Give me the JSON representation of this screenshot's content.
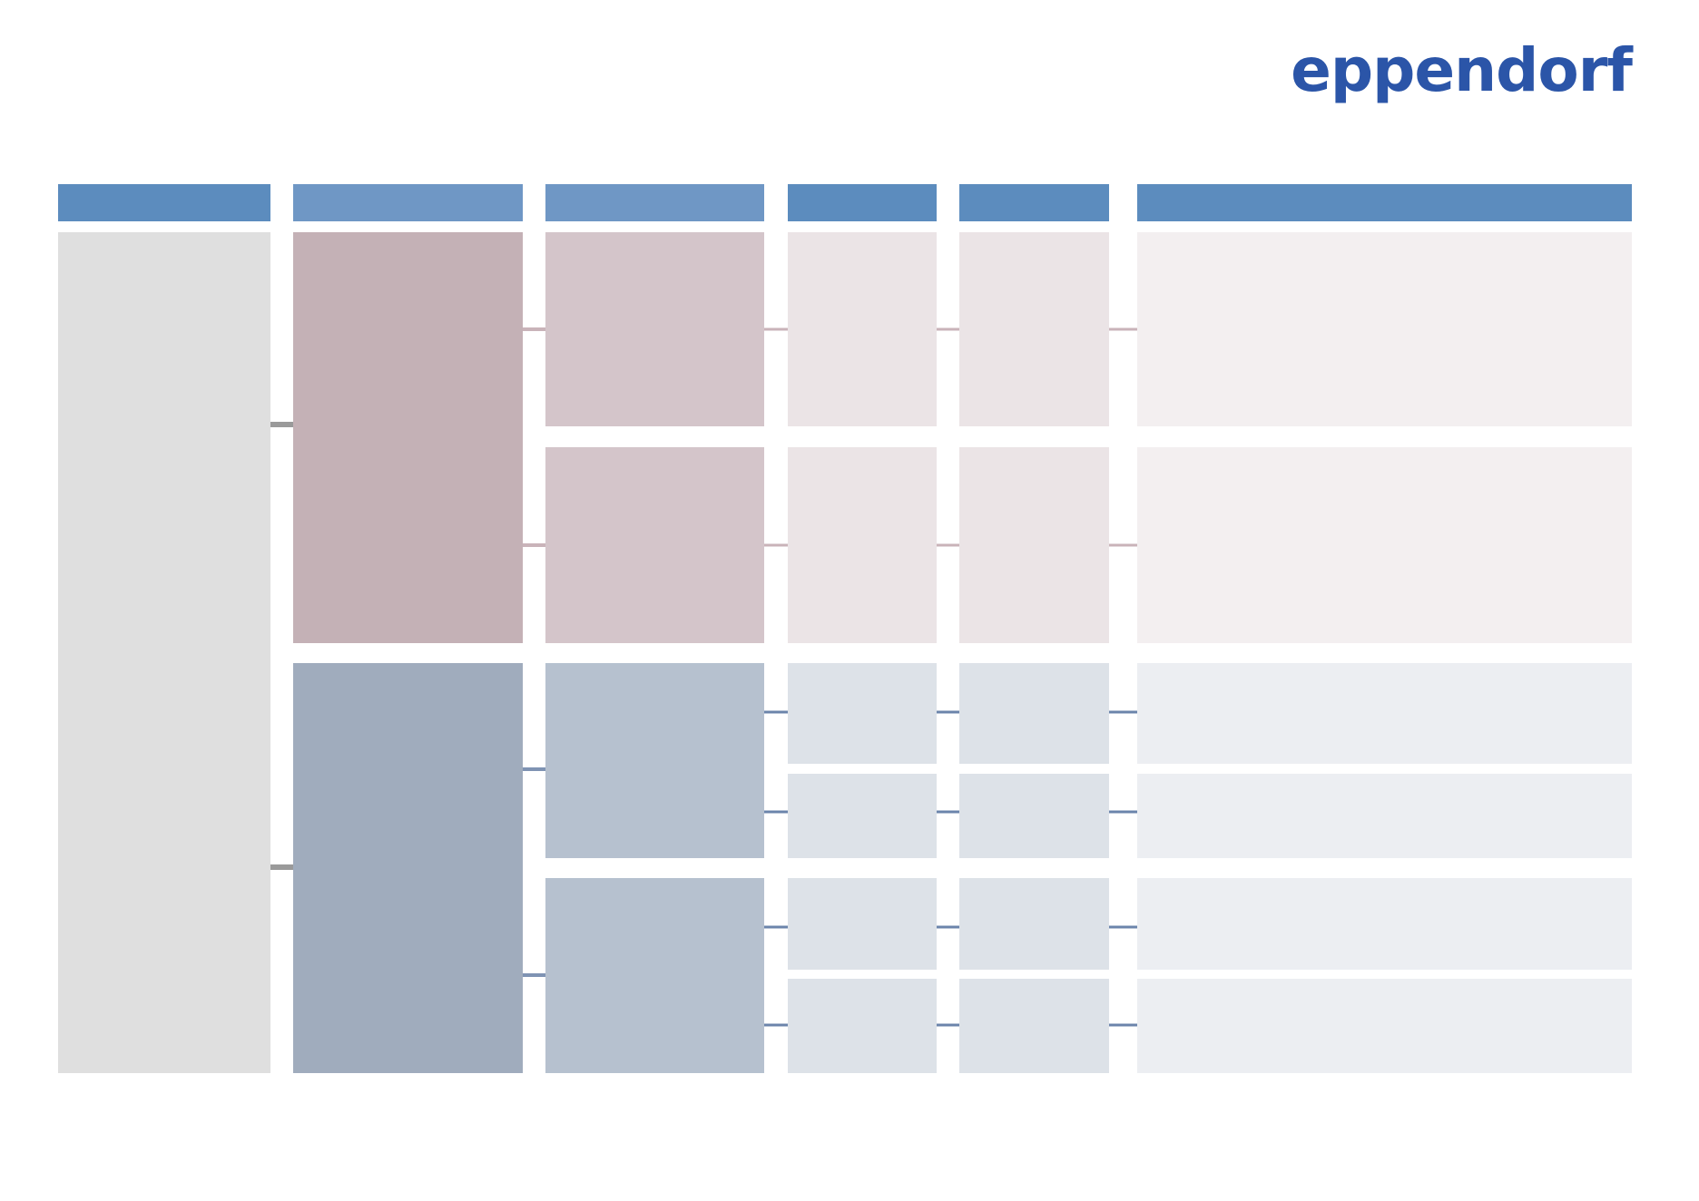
{
  "logo": "eppendorf"
}
